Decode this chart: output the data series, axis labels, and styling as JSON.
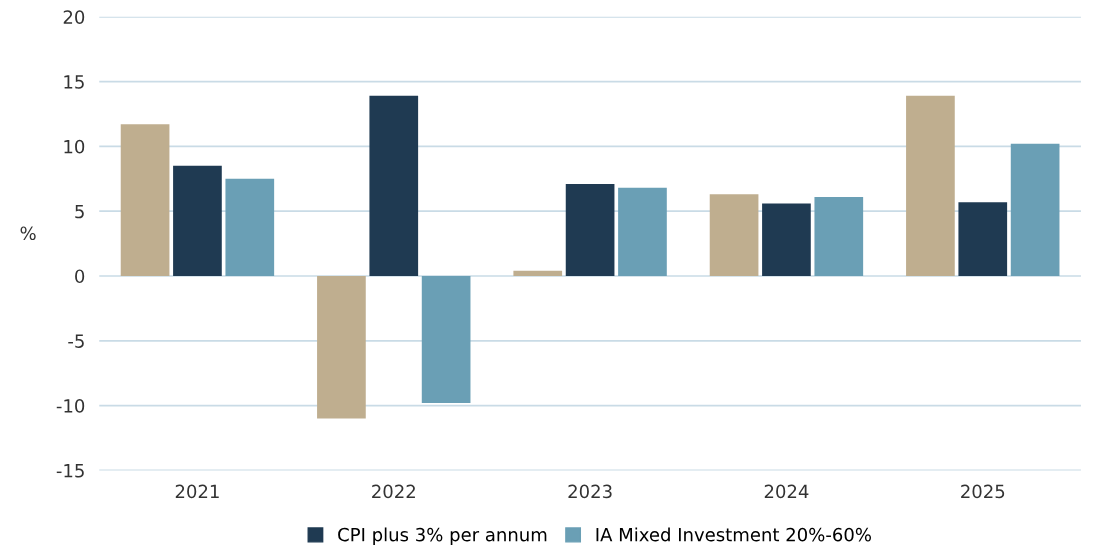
{
  "chart_data": {
    "type": "bar",
    "ylabel": "%",
    "categories": [
      "2021",
      "2022",
      "2023",
      "2024",
      "2025"
    ],
    "series": [
      {
        "color": "#bfae8f",
        "values": [
          11.7,
          -11.0,
          0.4,
          6.3,
          13.9
        ]
      },
      {
        "name": "CPI plus 3% per annum",
        "color": "#1f3a52",
        "values": [
          8.5,
          13.9,
          7.1,
          5.6,
          5.7
        ]
      },
      {
        "name": "IA Mixed Investment 20%-60%",
        "color": "#6a9fb5",
        "values": [
          7.5,
          -9.8,
          6.8,
          6.1,
          10.2
        ]
      }
    ],
    "ylim": [
      -15,
      20
    ],
    "yticks": [
      -15,
      -10,
      -5,
      0,
      5,
      10,
      15,
      20
    ],
    "grid": "y",
    "legend": "bottom"
  }
}
